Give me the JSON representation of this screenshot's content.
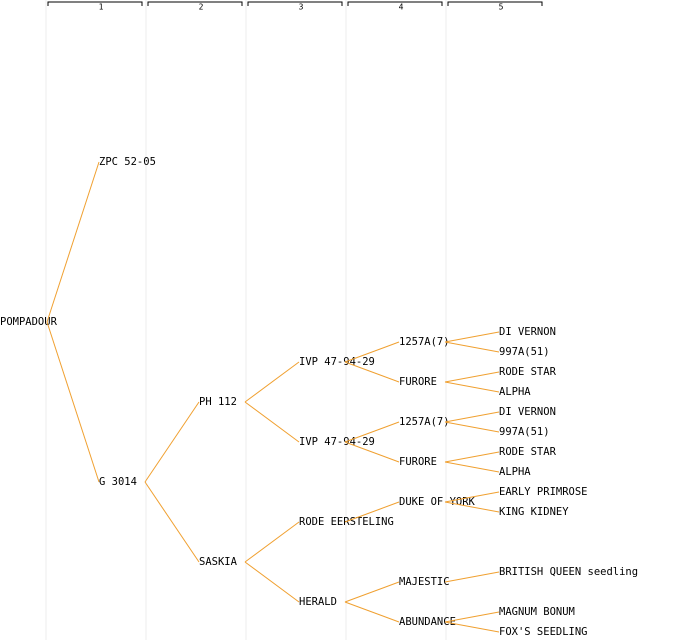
{
  "columns": [
    "1",
    "2",
    "3",
    "4",
    "5"
  ],
  "tree": {
    "label": "POMPADOUR",
    "children": [
      {
        "label": "ZPC 52-05",
        "children": []
      },
      {
        "label": "G 3014",
        "children": [
          {
            "label": "PH 112",
            "children": [
              {
                "label": "IVP 47-94-29",
                "children": [
                  {
                    "label": "1257A(7)",
                    "children": [
                      {
                        "label": "DI VERNON",
                        "children": []
                      },
                      {
                        "label": "997A(51)",
                        "children": []
                      }
                    ]
                  },
                  {
                    "label": "FURORE",
                    "children": [
                      {
                        "label": "RODE STAR",
                        "children": []
                      },
                      {
                        "label": "ALPHA",
                        "children": []
                      }
                    ]
                  }
                ]
              },
              {
                "label": "IVP 47-94-29",
                "children": [
                  {
                    "label": "1257A(7)",
                    "children": [
                      {
                        "label": "DI VERNON",
                        "children": []
                      },
                      {
                        "label": "997A(51)",
                        "children": []
                      }
                    ]
                  },
                  {
                    "label": "FURORE",
                    "children": [
                      {
                        "label": "RODE STAR",
                        "children": []
                      },
                      {
                        "label": "ALPHA",
                        "children": []
                      }
                    ]
                  }
                ]
              }
            ]
          },
          {
            "label": "SASKIA",
            "children": [
              {
                "label": "RODE EERSTELING",
                "children": [
                  {
                    "label": "DUKE OF YORK",
                    "children": [
                      {
                        "label": "EARLY PRIMROSE",
                        "children": []
                      },
                      {
                        "label": "KING KIDNEY",
                        "children": []
                      }
                    ]
                  },
                  null
                ]
              },
              {
                "label": "HERALD",
                "children": [
                  {
                    "label": "MAJESTIC",
                    "children": [
                      {
                        "label": "BRITISH QUEEN seedling",
                        "children": []
                      },
                      null
                    ]
                  },
                  {
                    "label": "ABUNDANCE",
                    "children": [
                      {
                        "label": "MAGNUM BONUM",
                        "children": []
                      },
                      {
                        "label": "FOX'S SEEDLING",
                        "children": []
                      }
                    ]
                  }
                ]
              }
            ]
          }
        ]
      }
    ]
  }
}
